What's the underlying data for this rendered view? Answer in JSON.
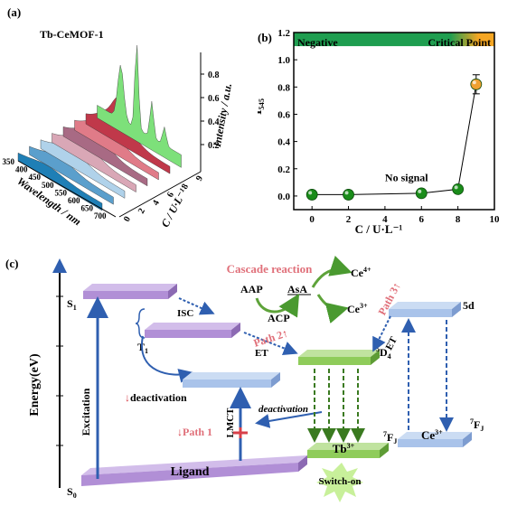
{
  "panel_a": {
    "label": "(a)",
    "title": "Tb-CeMOF-1",
    "axis_wavelength": "Wavelength / nm",
    "axis_c": "C / U·L⁻¹",
    "axis_intensity": "Intensity / a.u.",
    "wavelength_ticks": [
      "350",
      "400",
      "450",
      "500",
      "550",
      "600",
      "650",
      "700"
    ],
    "c_ticks": [
      "0",
      "2",
      "4",
      "6",
      "8",
      "9"
    ],
    "intensity_ticks": [
      "0.2",
      "0.4",
      "0.6",
      "0.8"
    ],
    "ribbon_colors": [
      "#1f7fb6",
      "#5b9fcc",
      "#b0d2ea",
      "#d9a7b6",
      "#a86a84",
      "#e07b88",
      "#c0384a",
      "#7de07a"
    ]
  },
  "chart_data": {
    "type": "scatter",
    "label": "(b)",
    "title": "",
    "xlabel": "C / U·L⁻¹",
    "ylabel": "I₅₄₅",
    "xlim": [
      -1,
      10
    ],
    "ylim": [
      -0.1,
      1.2
    ],
    "xticks": [
      "0",
      "2",
      "4",
      "6",
      "8",
      "10"
    ],
    "yticks": [
      "0.0",
      "0.2",
      "0.4",
      "0.6",
      "0.8",
      "1.0",
      "1.2"
    ],
    "series": [
      {
        "points": [
          {
            "x": 0,
            "y": 0.01,
            "err": 0.0,
            "color": "#1a8c1a"
          },
          {
            "x": 2,
            "y": 0.01,
            "err": 0.0,
            "color": "#1a8c1a"
          },
          {
            "x": 6,
            "y": 0.02,
            "err": 0.0,
            "color": "#1a8c1a"
          },
          {
            "x": 8,
            "y": 0.05,
            "err": 0.0,
            "color": "#1a8c1a"
          },
          {
            "x": 9,
            "y": 0.82,
            "err": 0.07,
            "color": "#f0a030"
          }
        ]
      }
    ],
    "bands": [
      {
        "label": "Negative",
        "color": "#1f9e50"
      },
      {
        "label": "Critical Point",
        "color": "#f5a623"
      }
    ],
    "annotation": "No signal"
  },
  "panel_c": {
    "label": "(c)",
    "y_axis_label": "Energy(eV)",
    "levels": {
      "s1": "S",
      "s1_sub": "1",
      "t1": "T",
      "t1_sub": "1",
      "s0": "S",
      "s0_sub": "0",
      "ligand": "Ligand",
      "d4": "5D4",
      "d4_sup": "5",
      "d4_base": "D",
      "d4_sub": "4",
      "fj_tb": "7FJ",
      "fj_tb_sup": "7",
      "fj_tb_base": "F",
      "fj_tb_sub": "J",
      "fj_ce": "7FJ",
      "fj_ce_sup": "7",
      "fj_ce_base": "F",
      "fj_ce_sub": "J",
      "d5": "5d",
      "tb3": "Tb",
      "tb3_sup": "3+",
      "ce3_level": "Ce",
      "ce3_level_sup": "3+"
    },
    "labels": {
      "excitation": "Excitation",
      "isc": "ISC",
      "deactivation1": "deactivation",
      "deactivation2": "deactivation",
      "lmct": "LMCT",
      "path1": "Path 1",
      "path2": "Path 2",
      "path3": "Path 3",
      "et1": "ET",
      "et2": "ET",
      "switch_on": "Switch-on",
      "cascade": "Cascade reaction",
      "aap": "AAP",
      "asa": "AsA",
      "acp": "ACP",
      "ce4": "Ce",
      "ce4_sup": "4+",
      "ce3": "Ce",
      "ce3_sup": "3+"
    },
    "colors": {
      "purple": "#b18fd6",
      "green": "#8fcc5a",
      "blue": "#a9c3ea",
      "arrow_blue": "#2f5fb0",
      "red_text": "#e0707a"
    }
  }
}
